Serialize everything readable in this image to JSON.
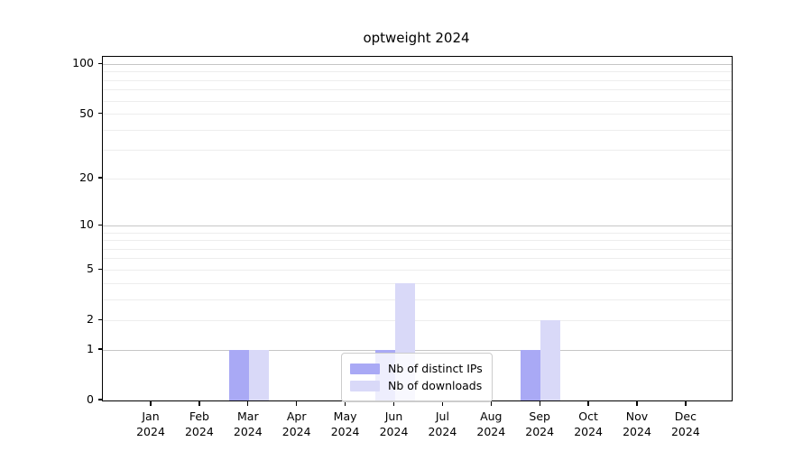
{
  "chart_data": {
    "type": "bar",
    "title": "optweight 2024",
    "categories": [
      "Jan 2024",
      "Feb 2024",
      "Mar 2024",
      "Apr 2024",
      "May 2024",
      "Jun 2024",
      "Jul 2024",
      "Aug 2024",
      "Sep 2024",
      "Oct 2024",
      "Nov 2024",
      "Dec 2024"
    ],
    "series": [
      {
        "name": "Nb of distinct IPs",
        "color": "#a9a9f5",
        "values": [
          0,
          0,
          1,
          0,
          0,
          1,
          0,
          0,
          1,
          0,
          0,
          0
        ]
      },
      {
        "name": "Nb of downloads",
        "color": "#d9d9f8",
        "values": [
          0,
          0,
          1,
          0,
          0,
          4,
          0,
          0,
          2,
          0,
          0,
          0
        ]
      }
    ],
    "yscale": "log1p",
    "ylim": [
      0,
      111
    ],
    "yticks": [
      0,
      1,
      2,
      5,
      10,
      20,
      50,
      100
    ],
    "ytick_labels": [
      "0",
      "1",
      "2",
      "5",
      "10",
      "20",
      "50",
      "100"
    ],
    "major_gridlines": [
      1,
      10,
      100
    ],
    "minor_gridlines": [
      2,
      3,
      4,
      5,
      6,
      7,
      8,
      9,
      20,
      30,
      40,
      50,
      60,
      70,
      80,
      90
    ],
    "grid": "horizontal",
    "legend_position": "inside-bottom-center"
  }
}
